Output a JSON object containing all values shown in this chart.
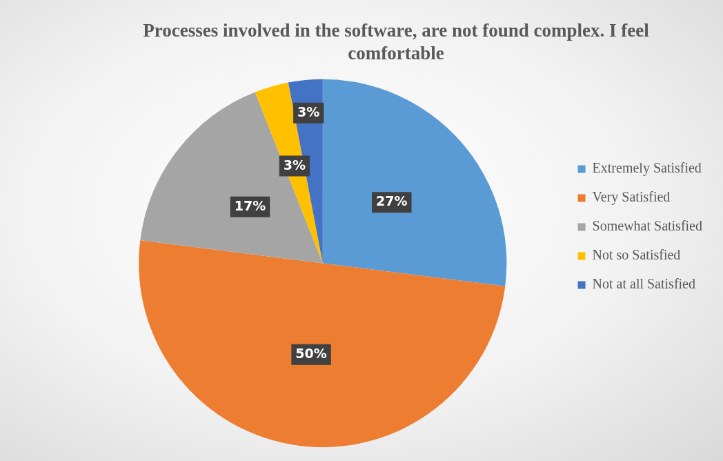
{
  "chart_data": {
    "type": "pie",
    "title": "Processes involved in the software, are not found complex. I feel comfortable",
    "categories": [
      "Extremely Satisfied",
      "Very Satisfied",
      "Somewhat Satisfied",
      "Not so Satisfied",
      "Not at all Satisfied"
    ],
    "values": [
      27,
      50,
      17,
      3,
      3
    ],
    "colors": [
      "#5b9bd5",
      "#ed7d31",
      "#a5a5a5",
      "#ffc000",
      "#4472c4"
    ],
    "value_labels": [
      "27%",
      "50%",
      "17%",
      "3%",
      "3%"
    ],
    "legend": "right"
  }
}
